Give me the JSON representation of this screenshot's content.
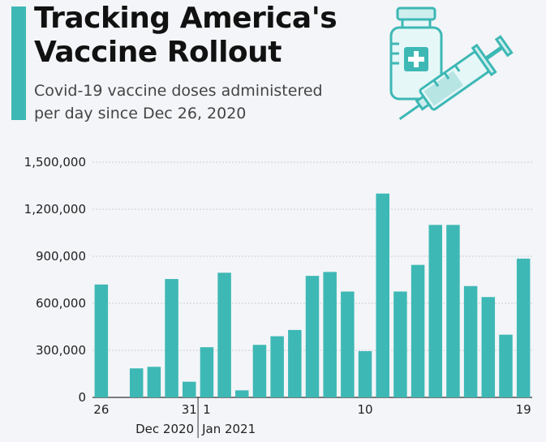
{
  "header": {
    "title_line1": "Tracking America's",
    "title_line2": "Vaccine Rollout",
    "subtitle_line1": "Covid-19 vaccine doses administered",
    "subtitle_line2": "per day since Dec 26, 2020"
  },
  "illustration": {
    "icons": [
      "vaccine-vial-icon",
      "syringe-icon"
    ]
  },
  "colors": {
    "accent": "#3db8b5",
    "bar": "#3db8b5",
    "grid": "#c9ced4",
    "text": "#111111"
  },
  "chart_data": {
    "type": "bar",
    "title": "Tracking America's Vaccine Rollout",
    "subtitle": "Covid-19 vaccine doses administered per day since Dec 26, 2020",
    "categories": [
      "Dec 26",
      "Dec 27",
      "Dec 28",
      "Dec 29",
      "Dec 30",
      "Dec 31",
      "Jan 1",
      "Jan 2",
      "Jan 3",
      "Jan 4",
      "Jan 5",
      "Jan 6",
      "Jan 7",
      "Jan 8",
      "Jan 9",
      "Jan 10",
      "Jan 11",
      "Jan 12",
      "Jan 13",
      "Jan 14",
      "Jan 15",
      "Jan 16",
      "Jan 17",
      "Jan 18",
      "Jan 19"
    ],
    "values": [
      720000,
      0,
      185000,
      195000,
      755000,
      100000,
      320000,
      795000,
      45000,
      335000,
      390000,
      430000,
      775000,
      800000,
      675000,
      295000,
      1300000,
      675000,
      845000,
      1100000,
      1100000,
      710000,
      640000,
      400000,
      885000
    ],
    "yticks": [
      0,
      300000,
      600000,
      900000,
      1200000,
      1500000
    ],
    "ytick_labels": [
      "0",
      "300,000",
      "600,000",
      "900,000",
      "1,200,000",
      "1,500,000"
    ],
    "ylim": [
      0,
      1500000
    ],
    "xtick_labels": [
      {
        "index": 0,
        "label": "26"
      },
      {
        "index": 5,
        "label": "31"
      },
      {
        "index": 6,
        "label": "1"
      },
      {
        "index": 15,
        "label": "10"
      },
      {
        "index": 24,
        "label": "19"
      }
    ],
    "month_labels": [
      {
        "label": "Dec 2020",
        "from": 0,
        "to": 5
      },
      {
        "label": "Jan 2021",
        "from": 6,
        "to": 24
      }
    ],
    "xlabel": "",
    "ylabel": "",
    "grid": true
  }
}
